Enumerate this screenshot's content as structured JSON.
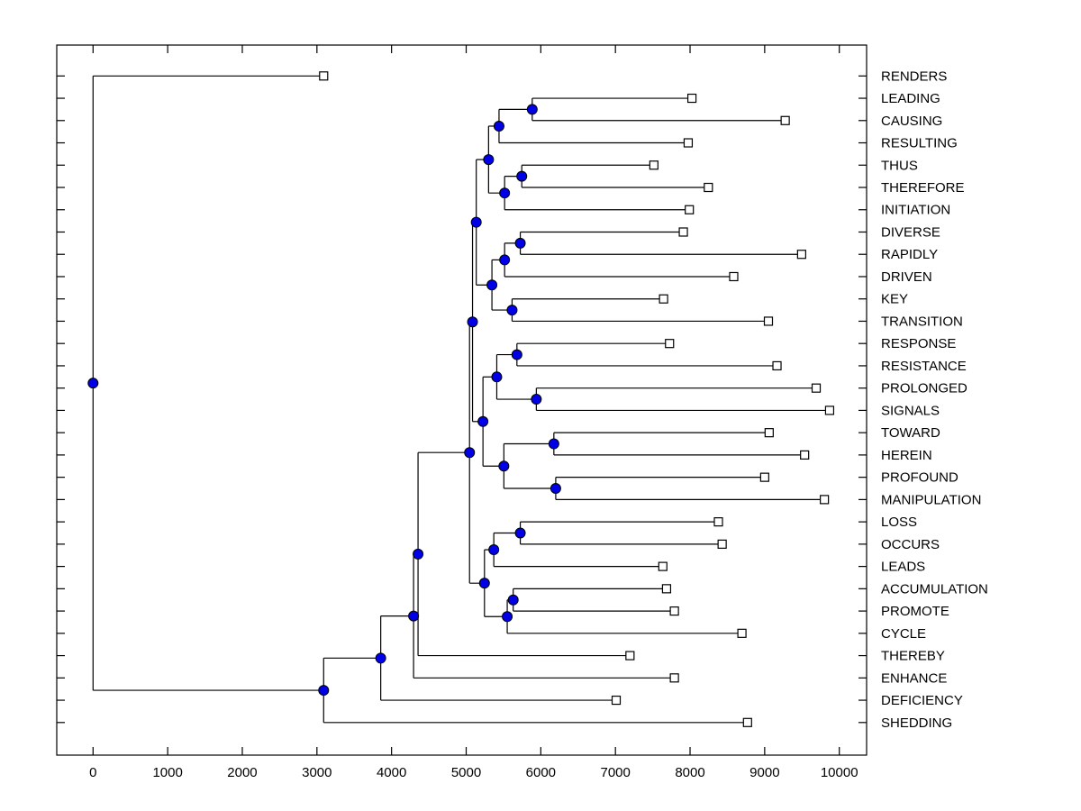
{
  "figure": {
    "background": "#ffffff",
    "type_hint": "phylogenetic-tree-dendrogram"
  },
  "chart_data": {
    "type": "dendrogram",
    "orientation": "horizontal",
    "title": "",
    "xlabel": "",
    "ylabel": "",
    "grid": false,
    "x_axis": {
      "min": 0,
      "max": 10000,
      "tick_step": 1000,
      "tick_labels": [
        "0",
        "1000",
        "2000",
        "3000",
        "4000",
        "5000",
        "6000",
        "7000",
        "8000",
        "9000",
        "10000"
      ]
    },
    "styles": {
      "line_color": "#000000",
      "internal_node_fill": "#0000e6",
      "internal_node_stroke": "#000000",
      "leaf_marker_fill": "#ffffff",
      "leaf_marker_stroke": "#000000",
      "label_color": "#000000"
    },
    "leaves": [
      {
        "label": "RENDERS",
        "value": 3090
      },
      {
        "label": "LEADING",
        "value": 8025
      },
      {
        "label": "CAUSING",
        "value": 9275
      },
      {
        "label": "RESULTING",
        "value": 7975
      },
      {
        "label": "THUS",
        "value": 7515
      },
      {
        "label": "THEREFORE",
        "value": 8245
      },
      {
        "label": "INITIATION",
        "value": 7990
      },
      {
        "label": "DIVERSE",
        "value": 7910
      },
      {
        "label": "RAPIDLY",
        "value": 9495
      },
      {
        "label": "DRIVEN",
        "value": 8585
      },
      {
        "label": "KEY",
        "value": 7645
      },
      {
        "label": "TRANSITION",
        "value": 9050
      },
      {
        "label": "RESPONSE",
        "value": 7725
      },
      {
        "label": "RESISTANCE",
        "value": 9165
      },
      {
        "label": "PROLONGED",
        "value": 9690
      },
      {
        "label": "SIGNALS",
        "value": 9870
      },
      {
        "label": "TOWARD",
        "value": 9060
      },
      {
        "label": "HEREIN",
        "value": 9535
      },
      {
        "label": "PROFOUND",
        "value": 9000
      },
      {
        "label": "MANIPULATION",
        "value": 9800
      },
      {
        "label": "LOSS",
        "value": 8380
      },
      {
        "label": "OCCURS",
        "value": 8430
      },
      {
        "label": "LEADS",
        "value": 7635
      },
      {
        "label": "ACCUMULATION",
        "value": 7685
      },
      {
        "label": "PROMOTE",
        "value": 7790
      },
      {
        "label": "CYCLE",
        "value": 8695
      },
      {
        "label": "THEREBY",
        "value": 7195
      },
      {
        "label": "ENHANCE",
        "value": 7790
      },
      {
        "label": "DEFICIENCY",
        "value": 7010
      },
      {
        "label": "SHEDDING",
        "value": 8770
      }
    ],
    "internal_nodes": [
      {
        "id": "n1",
        "children": [
          "LEADING",
          "CAUSING"
        ],
        "value": 5885
      },
      {
        "id": "n2",
        "children": [
          "n1",
          "RESULTING"
        ],
        "value": 5440
      },
      {
        "id": "n3",
        "children": [
          "THUS",
          "THEREFORE"
        ],
        "value": 5745
      },
      {
        "id": "n4",
        "children": [
          "n3",
          "INITIATION"
        ],
        "value": 5515
      },
      {
        "id": "n5",
        "children": [
          "n2",
          "n4"
        ],
        "value": 5300
      },
      {
        "id": "n6",
        "children": [
          "DIVERSE",
          "RAPIDLY"
        ],
        "value": 5725
      },
      {
        "id": "n7",
        "children": [
          "n6",
          "DRIVEN"
        ],
        "value": 5515
      },
      {
        "id": "n8",
        "children": [
          "KEY",
          "TRANSITION"
        ],
        "value": 5615
      },
      {
        "id": "n9",
        "children": [
          "n7",
          "n8"
        ],
        "value": 5345
      },
      {
        "id": "n10",
        "children": [
          "n5",
          "n9"
        ],
        "value": 5135
      },
      {
        "id": "n11",
        "children": [
          "RESPONSE",
          "RESISTANCE"
        ],
        "value": 5680
      },
      {
        "id": "n12",
        "children": [
          "PROLONGED",
          "SIGNALS"
        ],
        "value": 5940
      },
      {
        "id": "n13",
        "children": [
          "n11",
          "n12"
        ],
        "value": 5410
      },
      {
        "id": "n14",
        "children": [
          "TOWARD",
          "HEREIN"
        ],
        "value": 6175
      },
      {
        "id": "n15",
        "children": [
          "PROFOUND",
          "MANIPULATION"
        ],
        "value": 6200
      },
      {
        "id": "n16",
        "children": [
          "n14",
          "n15"
        ],
        "value": 5505
      },
      {
        "id": "n17",
        "children": [
          "n13",
          "n16"
        ],
        "value": 5225
      },
      {
        "id": "n18",
        "children": [
          "n10",
          "n17"
        ],
        "value": 5085
      },
      {
        "id": "n19",
        "children": [
          "LOSS",
          "OCCURS"
        ],
        "value": 5725
      },
      {
        "id": "n20",
        "children": [
          "n19",
          "LEADS"
        ],
        "value": 5370
      },
      {
        "id": "n21",
        "children": [
          "ACCUMULATION",
          "PROMOTE"
        ],
        "value": 5630
      },
      {
        "id": "n22",
        "children": [
          "n21",
          "CYCLE"
        ],
        "value": 5550
      },
      {
        "id": "n23",
        "children": [
          "n20",
          "n22"
        ],
        "value": 5245
      },
      {
        "id": "n24",
        "children": [
          "n18",
          "n23"
        ],
        "value": 5045
      },
      {
        "id": "n25",
        "children": [
          "n24",
          "THEREBY"
        ],
        "value": 4355
      },
      {
        "id": "n26",
        "children": [
          "n25",
          "ENHANCE"
        ],
        "value": 4295
      },
      {
        "id": "n27",
        "children": [
          "n26",
          "DEFICIENCY"
        ],
        "value": 3855
      },
      {
        "id": "n28",
        "children": [
          "n27",
          "SHEDDING"
        ],
        "value": 3090
      },
      {
        "id": "root",
        "children": [
          "RENDERS",
          "n28"
        ],
        "value": 0
      }
    ]
  }
}
